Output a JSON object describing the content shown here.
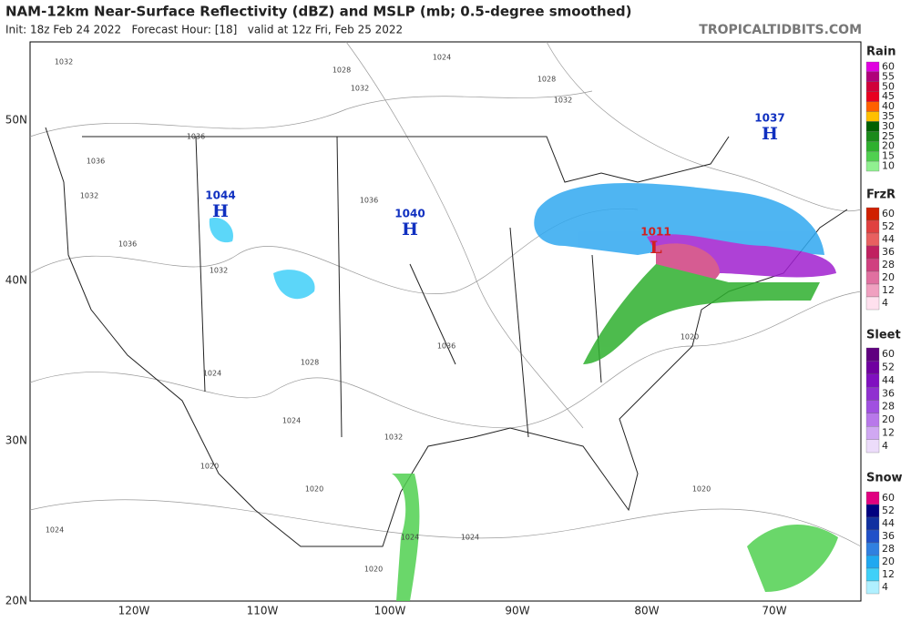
{
  "header": {
    "title": "NAM-12km Near-Surface Reflectivity (dBZ) and MSLP (mb; 0.5-degree smoothed)",
    "subtitle": "Init: 18z Feb 24 2022   Forecast Hour: [18]   valid at 12z Fri, Feb 25 2022",
    "site": "TROPICALTIDBITS.COM"
  },
  "map": {
    "lat_labels": [
      "50N",
      "40N",
      "30N",
      "20N"
    ],
    "lon_labels": [
      "120W",
      "110W",
      "100W",
      "90W",
      "80W",
      "70W"
    ],
    "pressure_centers": [
      {
        "label": "H",
        "value": "1044"
      },
      {
        "label": "H",
        "value": "1040"
      },
      {
        "label": "H",
        "value": "1037"
      },
      {
        "label": "L",
        "value": "1011"
      }
    ],
    "isobar_labels": [
      "1032",
      "1036",
      "1028",
      "1024",
      "1032",
      "1028",
      "1032",
      "1036",
      "1032",
      "1036",
      "1036",
      "1032",
      "1024",
      "1028",
      "1024",
      "1032",
      "1036",
      "1020",
      "1024",
      "1020",
      "1020",
      "1024",
      "1024",
      "1020",
      "1020"
    ]
  },
  "legend": [
    {
      "title": "Rain",
      "ticks": [
        60,
        55,
        50,
        45,
        40,
        35,
        30,
        25,
        20,
        15,
        10
      ],
      "colors": [
        "#e000e0",
        "#b0007a",
        "#d0003a",
        "#e80020",
        "#ff6000",
        "#ffc000",
        "#006000",
        "#1a8a1a",
        "#2eb02e",
        "#50d050",
        "#90f090"
      ]
    },
    {
      "title": "FrzR",
      "ticks": [
        60,
        52,
        44,
        36,
        28,
        20,
        12,
        4
      ],
      "colors": [
        "#d02000",
        "#e04040",
        "#e86060",
        "#c02060",
        "#d04080",
        "#e070a0",
        "#f0a0c0",
        "#ffe0ee"
      ]
    },
    {
      "title": "Sleet",
      "ticks": [
        60,
        52,
        44,
        36,
        28,
        20,
        12,
        4
      ],
      "colors": [
        "#600080",
        "#7000a0",
        "#8010c0",
        "#9030d0",
        "#a050e0",
        "#b878ea",
        "#d0a8f2",
        "#ecdcfa"
      ]
    },
    {
      "title": "Snow",
      "ticks": [
        60,
        52,
        44,
        36,
        28,
        20,
        12,
        4
      ],
      "colors": [
        "#e00080",
        "#000080",
        "#1030a0",
        "#2050c8",
        "#3080e0",
        "#20a8f0",
        "#40d0f8",
        "#b0f0ff"
      ]
    }
  ]
}
